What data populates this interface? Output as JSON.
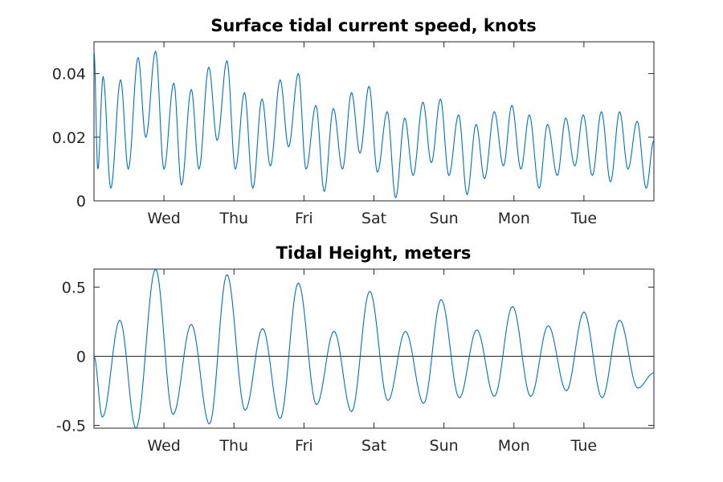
{
  "chart_data": [
    {
      "type": "line",
      "title": "Surface tidal current speed, knots",
      "xlabel": "",
      "ylabel": "",
      "x_tick_labels": [
        "Wed",
        "Thu",
        "Fri",
        "Sat",
        "Sun",
        "Mon",
        "Tue"
      ],
      "y_ticks": [
        0,
        0.02,
        0.04
      ],
      "y_tick_labels": [
        "0",
        "0.02",
        "0.04"
      ],
      "ylim": [
        0,
        0.05
      ],
      "xlim_days": [
        0,
        8
      ],
      "x_tick_days": [
        1,
        2,
        3,
        4,
        5,
        6,
        7
      ],
      "color": "#0072bd",
      "series": [
        {
          "x_days": [
            0,
            0.055,
            0.13,
            0.24,
            0.38,
            0.49,
            0.63,
            0.74,
            0.88,
            1.0,
            1.14,
            1.25,
            1.39,
            1.5,
            1.64,
            1.76,
            1.9,
            2.02,
            2.15,
            2.27,
            2.4,
            2.52,
            2.66,
            2.78,
            2.92,
            3.03,
            3.17,
            3.29,
            3.42,
            3.55,
            3.68,
            3.8,
            3.93,
            4.05,
            4.19,
            4.31,
            4.44,
            4.56,
            4.7,
            4.82,
            4.95,
            5.07,
            5.21,
            5.33,
            5.46,
            5.58,
            5.72,
            5.85,
            5.97,
            6.1,
            6.22,
            6.36,
            6.48,
            6.62,
            6.74,
            6.87,
            6.99,
            7.12,
            7.25,
            7.38,
            7.51,
            7.63,
            7.76,
            7.89,
            8.0
          ],
          "y": [
            0.047,
            0.01,
            0.039,
            0.004,
            0.038,
            0.01,
            0.045,
            0.02,
            0.047,
            0.01,
            0.037,
            0.005,
            0.035,
            0.01,
            0.042,
            0.019,
            0.044,
            0.01,
            0.034,
            0.004,
            0.032,
            0.011,
            0.038,
            0.017,
            0.04,
            0.01,
            0.03,
            0.003,
            0.029,
            0.01,
            0.034,
            0.015,
            0.036,
            0.009,
            0.028,
            0.001,
            0.026,
            0.008,
            0.031,
            0.012,
            0.032,
            0.008,
            0.027,
            0.002,
            0.024,
            0.007,
            0.028,
            0.011,
            0.03,
            0.01,
            0.027,
            0.004,
            0.024,
            0.008,
            0.026,
            0.011,
            0.027,
            0.008,
            0.028,
            0.006,
            0.028,
            0.01,
            0.025,
            0.004,
            0.019
          ]
        }
      ]
    },
    {
      "type": "line",
      "title": "Tidal Height, meters",
      "xlabel": "",
      "ylabel": "",
      "x_tick_labels": [
        "Wed",
        "Thu",
        "Fri",
        "Sat",
        "Sun",
        "Mon",
        "Tue"
      ],
      "y_ticks": [
        -0.5,
        0,
        0.5
      ],
      "y_tick_labels": [
        "-0.5",
        "0",
        "0.5"
      ],
      "ylim": [
        -0.52,
        0.63
      ],
      "xlim_days": [
        0,
        8
      ],
      "x_tick_days": [
        1,
        2,
        3,
        4,
        5,
        6,
        7
      ],
      "zero_line": true,
      "color": "#0072bd",
      "series": [
        {
          "x_days": [
            0,
            0.12,
            0.37,
            0.6,
            0.88,
            1.13,
            1.39,
            1.65,
            1.9,
            2.16,
            2.41,
            2.66,
            2.92,
            3.18,
            3.43,
            3.68,
            3.94,
            4.2,
            4.45,
            4.71,
            4.96,
            5.22,
            5.47,
            5.72,
            5.98,
            6.24,
            6.49,
            6.75,
            7.0,
            7.26,
            7.51,
            7.77,
            8.0
          ],
          "y": [
            0.0,
            -0.44,
            0.26,
            -0.52,
            0.63,
            -0.42,
            0.23,
            -0.49,
            0.59,
            -0.39,
            0.2,
            -0.45,
            0.53,
            -0.35,
            0.18,
            -0.4,
            0.47,
            -0.32,
            0.18,
            -0.34,
            0.41,
            -0.3,
            0.19,
            -0.29,
            0.36,
            -0.29,
            0.22,
            -0.25,
            0.32,
            -0.3,
            0.26,
            -0.23,
            -0.12
          ]
        }
      ]
    }
  ]
}
